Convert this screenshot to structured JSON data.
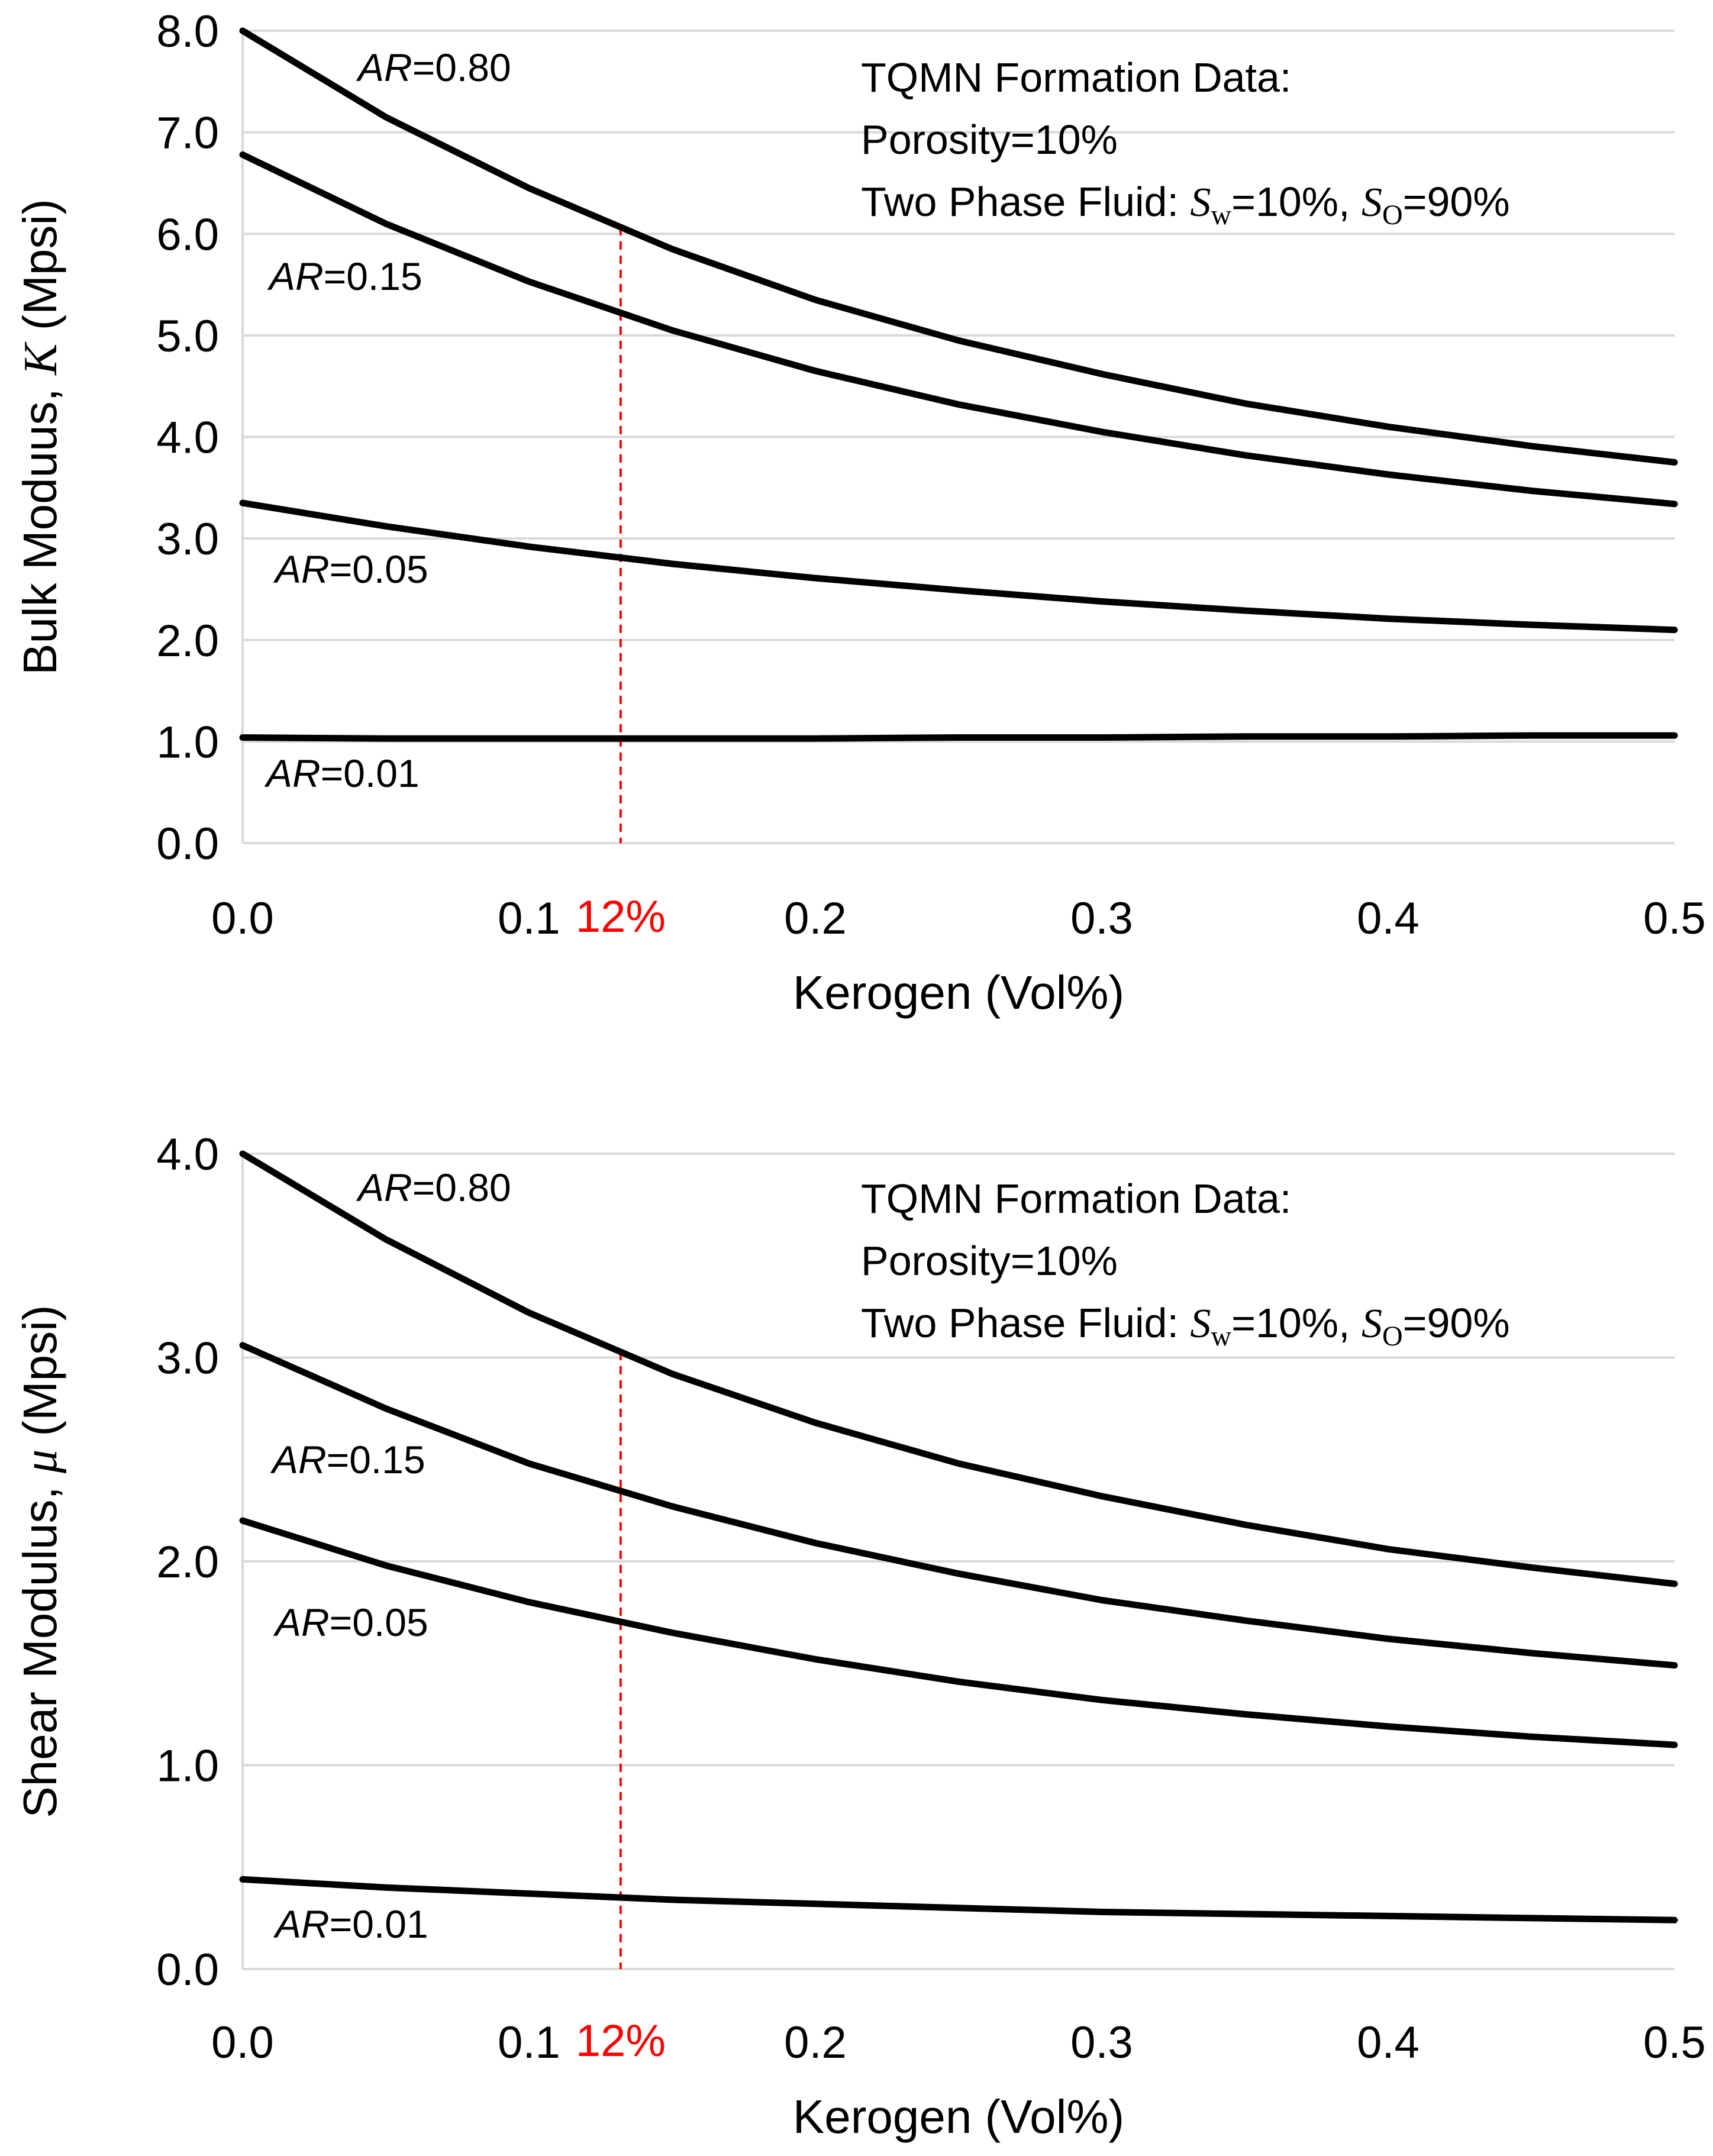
{
  "chart_data": [
    {
      "type": "line",
      "title": "",
      "xlabel": "Kerogen (Vol%)",
      "ylabel": "Bulk Moduus, K (Mpsi)",
      "ylabel_parts": {
        "main": "Bulk Moduus, ",
        "symbol": "K",
        "unit": " (Mpsi)"
      },
      "xlim": [
        0,
        0.5
      ],
      "ylim": [
        0,
        8
      ],
      "xticks": [
        "0.0",
        "0.1",
        "0.2",
        "0.3",
        "0.4",
        "0.5"
      ],
      "xtick_values": [
        0,
        0.1,
        0.2,
        0.3,
        0.4,
        0.5
      ],
      "yticks": [
        "0.0",
        "1.0",
        "2.0",
        "3.0",
        "4.0",
        "5.0",
        "6.0",
        "7.0",
        "8.0"
      ],
      "ytick_values": [
        0,
        1,
        2,
        3,
        4,
        5,
        6,
        7,
        8
      ],
      "grid": true,
      "x": [
        0,
        0.05,
        0.1,
        0.15,
        0.2,
        0.25,
        0.3,
        0.35,
        0.4,
        0.45,
        0.5
      ],
      "series": [
        {
          "label_parts": {
            "ar": "AR",
            "value": "=0.80"
          },
          "values": [
            8.0,
            7.15,
            6.45,
            5.85,
            5.35,
            4.95,
            4.62,
            4.33,
            4.1,
            3.91,
            3.75
          ]
        },
        {
          "label_parts": {
            "ar": "AR",
            "value": "=0.15"
          },
          "values": [
            6.78,
            6.1,
            5.53,
            5.05,
            4.65,
            4.32,
            4.05,
            3.82,
            3.63,
            3.47,
            3.34
          ]
        },
        {
          "label_parts": {
            "ar": "AR",
            "value": "=0.05"
          },
          "values": [
            3.35,
            3.12,
            2.92,
            2.75,
            2.61,
            2.49,
            2.38,
            2.29,
            2.21,
            2.15,
            2.1
          ]
        },
        {
          "label_parts": {
            "ar": "AR",
            "value": "=0.01"
          },
          "values": [
            1.04,
            1.03,
            1.03,
            1.03,
            1.03,
            1.04,
            1.04,
            1.05,
            1.05,
            1.06,
            1.06
          ]
        }
      ],
      "marker": {
        "x": 0.132,
        "label": "12%",
        "color": "#ff0000"
      },
      "annotation": {
        "line1": "TQMN Formation Data:",
        "line2": "Porosity=10%",
        "line3_prefix": "Two Phase Fluid: ",
        "sw_symbol": "S",
        "sw_sub": "w",
        "sw_value": "=10%, ",
        "so_symbol": "S",
        "so_sub": "O",
        "so_value": "=90%"
      }
    },
    {
      "type": "line",
      "title": "",
      "xlabel": "Kerogen (Vol%)",
      "ylabel": "Shear Modulus, μ (Mpsi)",
      "ylabel_parts": {
        "main": "Shear Modulus, ",
        "symbol": "μ",
        "unit": " (Mpsi)"
      },
      "xlim": [
        0,
        0.5
      ],
      "ylim": [
        0,
        4
      ],
      "xticks": [
        "0.0",
        "0.1",
        "0.2",
        "0.3",
        "0.4",
        "0.5"
      ],
      "xtick_values": [
        0,
        0.1,
        0.2,
        0.3,
        0.4,
        0.5
      ],
      "yticks": [
        "0.0",
        "1.0",
        "2.0",
        "3.0",
        "4.0"
      ],
      "ytick_values": [
        0,
        1,
        2,
        3,
        4
      ],
      "grid": true,
      "x": [
        0,
        0.05,
        0.1,
        0.15,
        0.2,
        0.25,
        0.3,
        0.35,
        0.4,
        0.45,
        0.5
      ],
      "series": [
        {
          "label_parts": {
            "ar": "AR",
            "value": "=0.80"
          },
          "values": [
            4.0,
            3.58,
            3.22,
            2.92,
            2.68,
            2.48,
            2.32,
            2.18,
            2.06,
            1.97,
            1.89
          ]
        },
        {
          "label_parts": {
            "ar": "AR",
            "value": "=0.15"
          },
          "values": [
            3.06,
            2.75,
            2.48,
            2.27,
            2.09,
            1.94,
            1.81,
            1.71,
            1.62,
            1.55,
            1.49
          ]
        },
        {
          "label_parts": {
            "ar": "AR",
            "value": "=0.05"
          },
          "values": [
            2.2,
            1.98,
            1.8,
            1.65,
            1.52,
            1.41,
            1.32,
            1.25,
            1.19,
            1.14,
            1.1
          ]
        },
        {
          "label_parts": {
            "ar": "AR",
            "value": "=0.01"
          },
          "values": [
            0.44,
            0.4,
            0.37,
            0.34,
            0.32,
            0.3,
            0.28,
            0.27,
            0.26,
            0.25,
            0.24
          ]
        }
      ],
      "marker": {
        "x": 0.132,
        "label": "12%",
        "color": "#ff0000"
      },
      "annotation": {
        "line1": "TQMN Formation Data:",
        "line2": "Porosity=10%",
        "line3_prefix": "Two Phase Fluid: ",
        "sw_symbol": "S",
        "sw_sub": "w",
        "sw_value": "=10%, ",
        "so_symbol": "S",
        "so_sub": "O",
        "so_value": "=90%"
      }
    }
  ]
}
